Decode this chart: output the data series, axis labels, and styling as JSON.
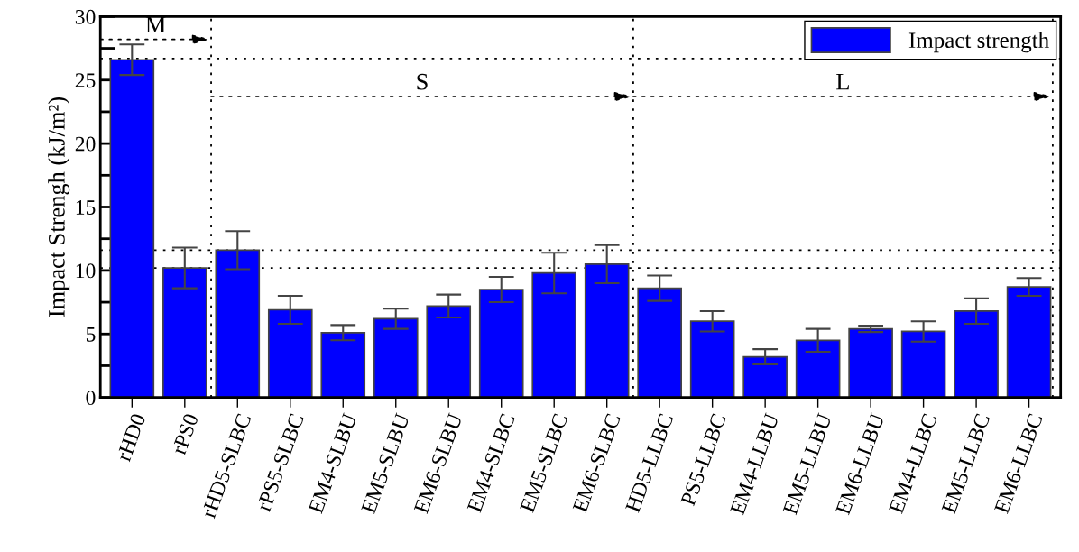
{
  "chart_data": {
    "type": "bar",
    "ylabel": "Impact Strengh (kJ/m²)",
    "categories": [
      "rHD0",
      "rPS0",
      "rHD5-SLBC",
      "rPS5-SLBC",
      "EM4-SLBU",
      "EM5-SLBU",
      "EM6-SLBU",
      "EM4-SLBC",
      "EM5-SLBC",
      "EM6-SLBC",
      "HD5-LLBC",
      "PS5-LLBC",
      "EM4-LLBU",
      "EM5-LLBU",
      "EM6-LLBU",
      "EM4-LLBC",
      "EM5-LLBC",
      "EM6-LLBC"
    ],
    "series": [
      {
        "name": "Impact strength",
        "color": "#0000ff",
        "values": [
          26.6,
          10.2,
          11.6,
          6.9,
          5.1,
          6.2,
          7.2,
          8.5,
          9.8,
          10.5,
          8.6,
          6.0,
          3.2,
          4.5,
          5.4,
          5.2,
          6.8,
          8.7
        ],
        "errors": [
          1.2,
          1.6,
          1.5,
          1.1,
          0.6,
          0.8,
          0.9,
          1.0,
          1.6,
          1.5,
          1.0,
          0.8,
          0.6,
          0.9,
          0.25,
          0.8,
          1.0,
          0.7
        ]
      }
    ],
    "ylim": [
      0,
      30
    ],
    "yticks": [
      0,
      5,
      10,
      15,
      20,
      25,
      30
    ],
    "ref_lines": [
      {
        "axis": "y",
        "value": 26.7,
        "line_style": "dotted"
      },
      {
        "axis": "y",
        "value": 11.6,
        "line_style": "dotted"
      },
      {
        "axis": "y",
        "value": 10.2,
        "line_style": "dotted"
      }
    ],
    "annotations": [
      "M",
      "S",
      "L"
    ],
    "legend": "top right",
    "grid": false
  }
}
